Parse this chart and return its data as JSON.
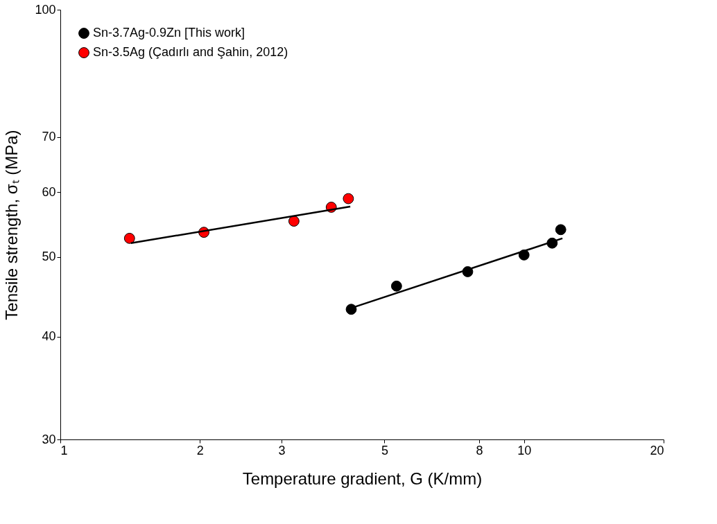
{
  "chart_data": {
    "type": "scatter",
    "xlabel": "Temperature gradient, G (K/mm)",
    "ylabel": "Tensile strength, σₜ (MPa)",
    "log": "xy",
    "xlim": [
      1,
      20
    ],
    "xticks": [
      1,
      2,
      3,
      5,
      8,
      10,
      20
    ],
    "ylim": [
      30,
      100
    ],
    "yticks": [
      30,
      40,
      50,
      60,
      70,
      100
    ],
    "grid": false,
    "legend": "top left",
    "marker": "circle",
    "series": [
      {
        "name": "Sn-3.7Ag-0.9Zn [This work]",
        "color": "#000000",
        "x": [
          4.24,
          5.31,
          7.56,
          10.0,
          11.5,
          12.0
        ],
        "values": [
          43.2,
          46.1,
          48.0,
          50.3,
          52.0,
          54.0
        ]
      },
      {
        "name": "Sn-3.5Ag (Çadırlı and Şahin, 2012)",
        "color": "#ff0000",
        "x": [
          1.41,
          2.04,
          3.19,
          3.84,
          4.18
        ],
        "values": [
          52.7,
          53.6,
          55.3,
          57.5,
          58.9
        ]
      },
      {
        "type": "line",
        "marker": "none",
        "color": "#000000",
        "x": [
          4.32,
          12.1
        ],
        "values": [
          43.5,
          52.7
        ]
      },
      {
        "type": "line",
        "marker": "none",
        "color": "#000000",
        "x": [
          1.42,
          4.22
        ],
        "values": [
          52.0,
          57.6
        ]
      }
    ]
  }
}
